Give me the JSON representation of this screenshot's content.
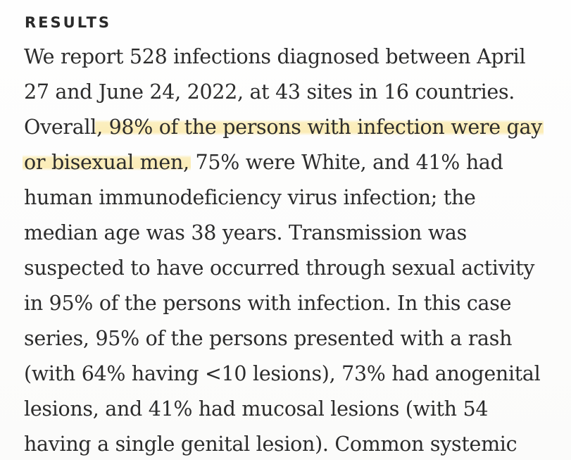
{
  "section": {
    "heading": "RESULTS"
  },
  "paragraph": {
    "lines": [
      {
        "segments": [
          {
            "text": "We report 528 infections diagnosed between April",
            "highlight": false
          }
        ]
      },
      {
        "segments": [
          {
            "text": "27 and June 24, 2022, at 43 sites in 16 countries.",
            "highlight": false
          }
        ]
      },
      {
        "segments": [
          {
            "text": "Overall",
            "highlight": false
          },
          {
            "text": ", 98% of the persons with infection were gay",
            "highlight": true
          }
        ]
      },
      {
        "segments": [
          {
            "text": "or bisexual men,",
            "highlight": true
          },
          {
            "text": " 75% were White, and 41% had",
            "highlight": false
          }
        ]
      },
      {
        "segments": [
          {
            "text": "human immunodeficiency virus infection; the",
            "highlight": false
          }
        ]
      },
      {
        "segments": [
          {
            "text": "median age was 38 years. Transmission was",
            "highlight": false
          }
        ]
      },
      {
        "segments": [
          {
            "text": "suspected to have occurred through sexual activity",
            "highlight": false
          }
        ]
      },
      {
        "segments": [
          {
            "text": "in 95% of the persons with infection. In this case",
            "highlight": false
          }
        ]
      },
      {
        "segments": [
          {
            "text": "series, 95% of the persons presented with a rash",
            "highlight": false
          }
        ]
      },
      {
        "segments": [
          {
            "text": "(with 64% having <10 lesions), 73% had anogenital",
            "highlight": false
          }
        ]
      },
      {
        "segments": [
          {
            "text": "lesions, and 41% had mucosal lesions (with 54",
            "highlight": false
          }
        ]
      },
      {
        "segments": [
          {
            "text": "having a single genital lesion). Common systemic",
            "highlight": false
          }
        ]
      }
    ]
  },
  "colors": {
    "text": "#2c2c2c",
    "highlight": "#fae28c",
    "background": "#fdfdfc"
  }
}
